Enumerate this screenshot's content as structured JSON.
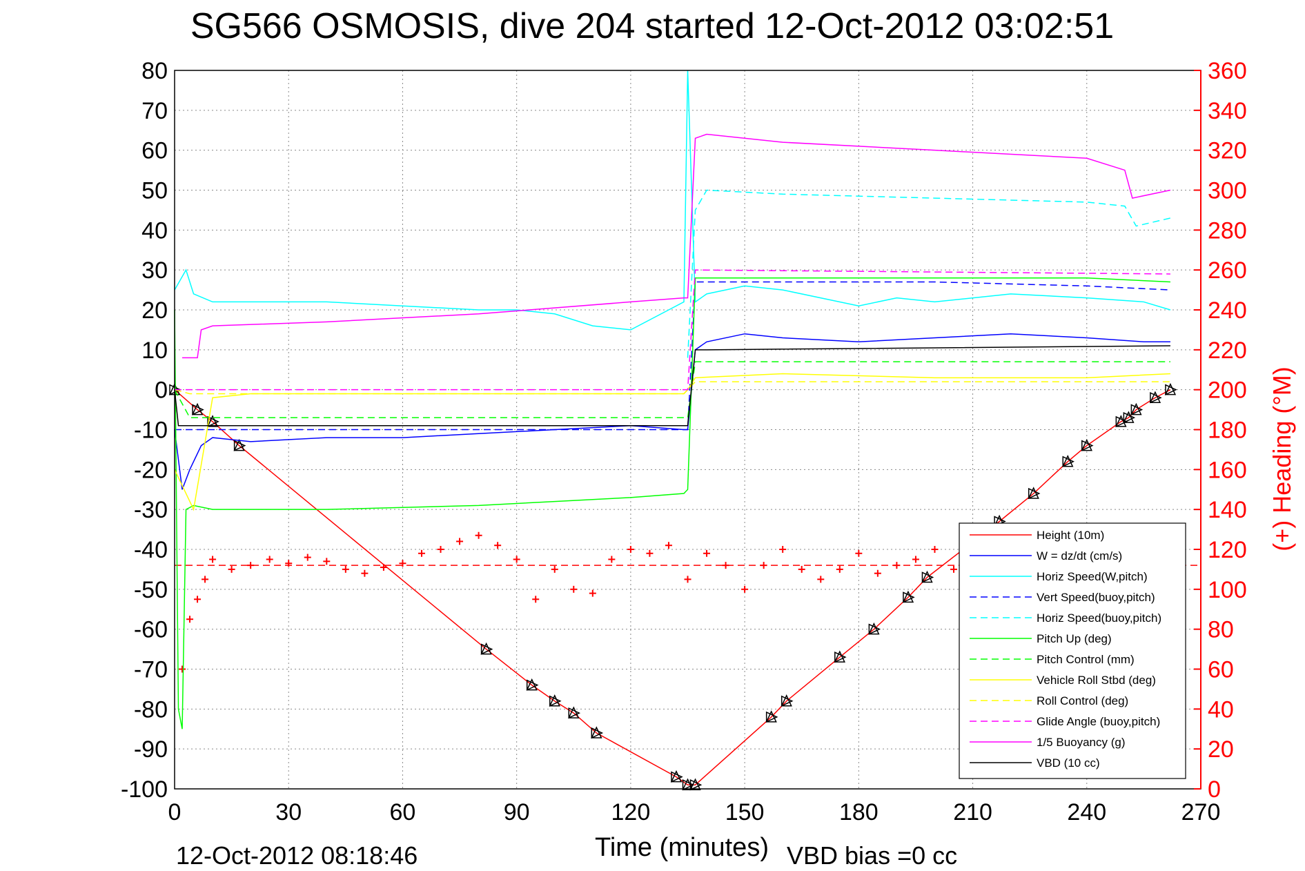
{
  "chart_data": {
    "type": "line",
    "title": "SG566 OSMOSIS, dive 204 started 12-Oct-2012 03:02:51",
    "xlabel": "Time (minutes)",
    "ylabel_right": "(+) Heading (°M)",
    "footer_left": "12-Oct-2012 08:18:46",
    "footer_right": "VBD bias =0 cc",
    "xlim": [
      0,
      270
    ],
    "ylim": [
      -100,
      80
    ],
    "ylim_right": [
      0,
      360
    ],
    "x_ticks": [
      0,
      30,
      60,
      90,
      120,
      150,
      180,
      210,
      240,
      270
    ],
    "y_ticks": [
      80,
      70,
      60,
      50,
      40,
      30,
      20,
      10,
      0,
      -10,
      -20,
      -30,
      -40,
      -50,
      -60,
      -70,
      -80,
      -90,
      -100
    ],
    "y_ticks_right": [
      360,
      340,
      320,
      300,
      280,
      260,
      240,
      220,
      200,
      180,
      160,
      140,
      120,
      100,
      80,
      60,
      40,
      20,
      0
    ],
    "grid": true,
    "legend_position": "lower-right",
    "series": [
      {
        "name": "Height (10m)",
        "color": "#ff0000",
        "style": "solid",
        "markers": "triangle",
        "x": [
          0,
          6,
          10,
          17,
          82,
          94,
          100,
          105,
          111,
          132,
          135,
          137,
          157,
          161,
          175,
          184,
          193,
          198,
          217,
          226,
          235,
          240,
          249,
          251,
          253,
          258,
          262
        ],
        "y": [
          0,
          -5,
          -8,
          -14,
          -65,
          -74,
          -78,
          -81,
          -86,
          -97,
          -99,
          -99,
          -82,
          -78,
          -67,
          -60,
          -52,
          -47,
          -33,
          -26,
          -18,
          -14,
          -8,
          -7,
          -5,
          -2,
          0
        ]
      },
      {
        "name": "W = dz/dt (cm/s)",
        "color": "#0000ff",
        "style": "solid",
        "x": [
          0,
          2,
          4,
          7,
          10,
          20,
          40,
          60,
          80,
          100,
          120,
          134,
          135,
          137,
          140,
          150,
          160,
          180,
          200,
          220,
          240,
          255,
          262
        ],
        "y": [
          -10,
          -25,
          -20,
          -14,
          -12,
          -13,
          -12,
          -12,
          -11,
          -10,
          -9,
          -10,
          -10,
          10,
          12,
          14,
          13,
          12,
          13,
          14,
          13,
          12,
          12
        ]
      },
      {
        "name": "Horiz Speed(W,pitch)",
        "color": "#00ffff",
        "style": "solid",
        "x": [
          0,
          3,
          5,
          10,
          20,
          40,
          60,
          80,
          90,
          100,
          110,
          120,
          130,
          134,
          135,
          137,
          140,
          150,
          160,
          180,
          190,
          200,
          220,
          240,
          255,
          262
        ],
        "y": [
          25,
          30,
          24,
          22,
          22,
          22,
          21,
          20,
          20,
          19,
          16,
          15,
          20,
          22,
          80,
          22,
          24,
          26,
          25,
          21,
          23,
          22,
          24,
          23,
          22,
          20
        ]
      },
      {
        "name": "Vert Speed(buoy,pitch)",
        "color": "#0000ff",
        "style": "dashed",
        "x": [
          0,
          135,
          137,
          140,
          160,
          200,
          240,
          262
        ],
        "y": [
          -10,
          -10,
          27,
          27,
          27,
          27,
          26,
          25
        ]
      },
      {
        "name": "Horiz Speed(buoy,pitch)",
        "color": "#00ffff",
        "style": "dashed",
        "x": [
          135,
          137,
          140,
          160,
          200,
          240,
          250,
          253,
          262
        ],
        "y": [
          8,
          45,
          50,
          49,
          48,
          47,
          46,
          41,
          43
        ]
      },
      {
        "name": "Pitch Up (deg)",
        "color": "#00ff00",
        "style": "solid",
        "x": [
          0,
          1,
          2,
          3,
          5,
          10,
          40,
          80,
          100,
          120,
          134,
          135,
          137,
          140,
          160,
          200,
          240,
          262
        ],
        "y": [
          20,
          -80,
          -85,
          -30,
          -29,
          -30,
          -30,
          -29,
          -28,
          -27,
          -26,
          -25,
          28,
          28,
          28,
          28,
          28,
          27
        ]
      },
      {
        "name": "Pitch Control (mm)",
        "color": "#00ff00",
        "style": "dashed",
        "x": [
          0,
          4,
          134,
          135,
          137,
          262
        ],
        "y": [
          0,
          -7,
          -7,
          -7,
          7,
          7
        ]
      },
      {
        "name": "Vehicle Roll Stbd (deg)",
        "color": "#ffff00",
        "style": "solid",
        "x": [
          0,
          5,
          10,
          20,
          60,
          100,
          134,
          135,
          137,
          160,
          200,
          240,
          262
        ],
        "y": [
          -20,
          -30,
          -2,
          -1,
          -1,
          -1,
          -1,
          0,
          3,
          4,
          3,
          3,
          4
        ]
      },
      {
        "name": "Roll Control (deg)",
        "color": "#ffff00",
        "style": "dashed",
        "x": [
          0,
          4,
          134,
          135,
          137,
          262
        ],
        "y": [
          0,
          -1,
          -1,
          0,
          2,
          2
        ]
      },
      {
        "name": "Glide Angle (buoy,pitch)",
        "color": "#ff00ff",
        "style": "dashed",
        "x": [
          0,
          135,
          137,
          262
        ],
        "y": [
          0,
          0,
          30,
          29
        ]
      },
      {
        "name": "1/5 Buoyancy (g)",
        "color": "#ff00ff",
        "style": "solid",
        "x": [
          2,
          3,
          6,
          7,
          10,
          40,
          80,
          120,
          134,
          135,
          137,
          140,
          160,
          200,
          240,
          250,
          252,
          262
        ],
        "y": [
          8,
          8,
          8,
          15,
          16,
          17,
          19,
          22,
          23,
          23,
          63,
          64,
          62,
          60,
          58,
          55,
          48,
          50
        ]
      },
      {
        "name": "VBD (10 cc)",
        "color": "#000000",
        "style": "solid",
        "x": [
          0,
          1,
          4,
          134,
          135,
          137,
          140,
          262
        ],
        "y": [
          0,
          -9,
          -9,
          -9,
          -9,
          10,
          10,
          11
        ]
      }
    ],
    "heading_series": {
      "name": "Heading",
      "color": "#ff0000",
      "marker": "plus",
      "target": 112,
      "x": [
        2,
        4,
        6,
        8,
        10,
        15,
        20,
        25,
        30,
        35,
        40,
        45,
        50,
        55,
        60,
        65,
        70,
        75,
        80,
        85,
        90,
        95,
        100,
        105,
        110,
        115,
        120,
        125,
        130,
        135,
        140,
        145,
        150,
        155,
        160,
        165,
        170,
        175,
        180,
        185,
        190,
        195,
        200,
        205,
        210,
        215,
        220,
        225,
        230,
        235,
        240,
        245,
        250,
        255,
        260
      ],
      "y": [
        60,
        85,
        95,
        105,
        115,
        110,
        112,
        115,
        113,
        116,
        114,
        110,
        108,
        111,
        113,
        118,
        120,
        124,
        127,
        122,
        115,
        95,
        110,
        100,
        98,
        115,
        120,
        118,
        122,
        105,
        118,
        112,
        100,
        112,
        120,
        110,
        105,
        110,
        118,
        108,
        112,
        115,
        120,
        110,
        100,
        95,
        108,
        115,
        112,
        110,
        105,
        100,
        120,
        130,
        125
      ]
    }
  }
}
